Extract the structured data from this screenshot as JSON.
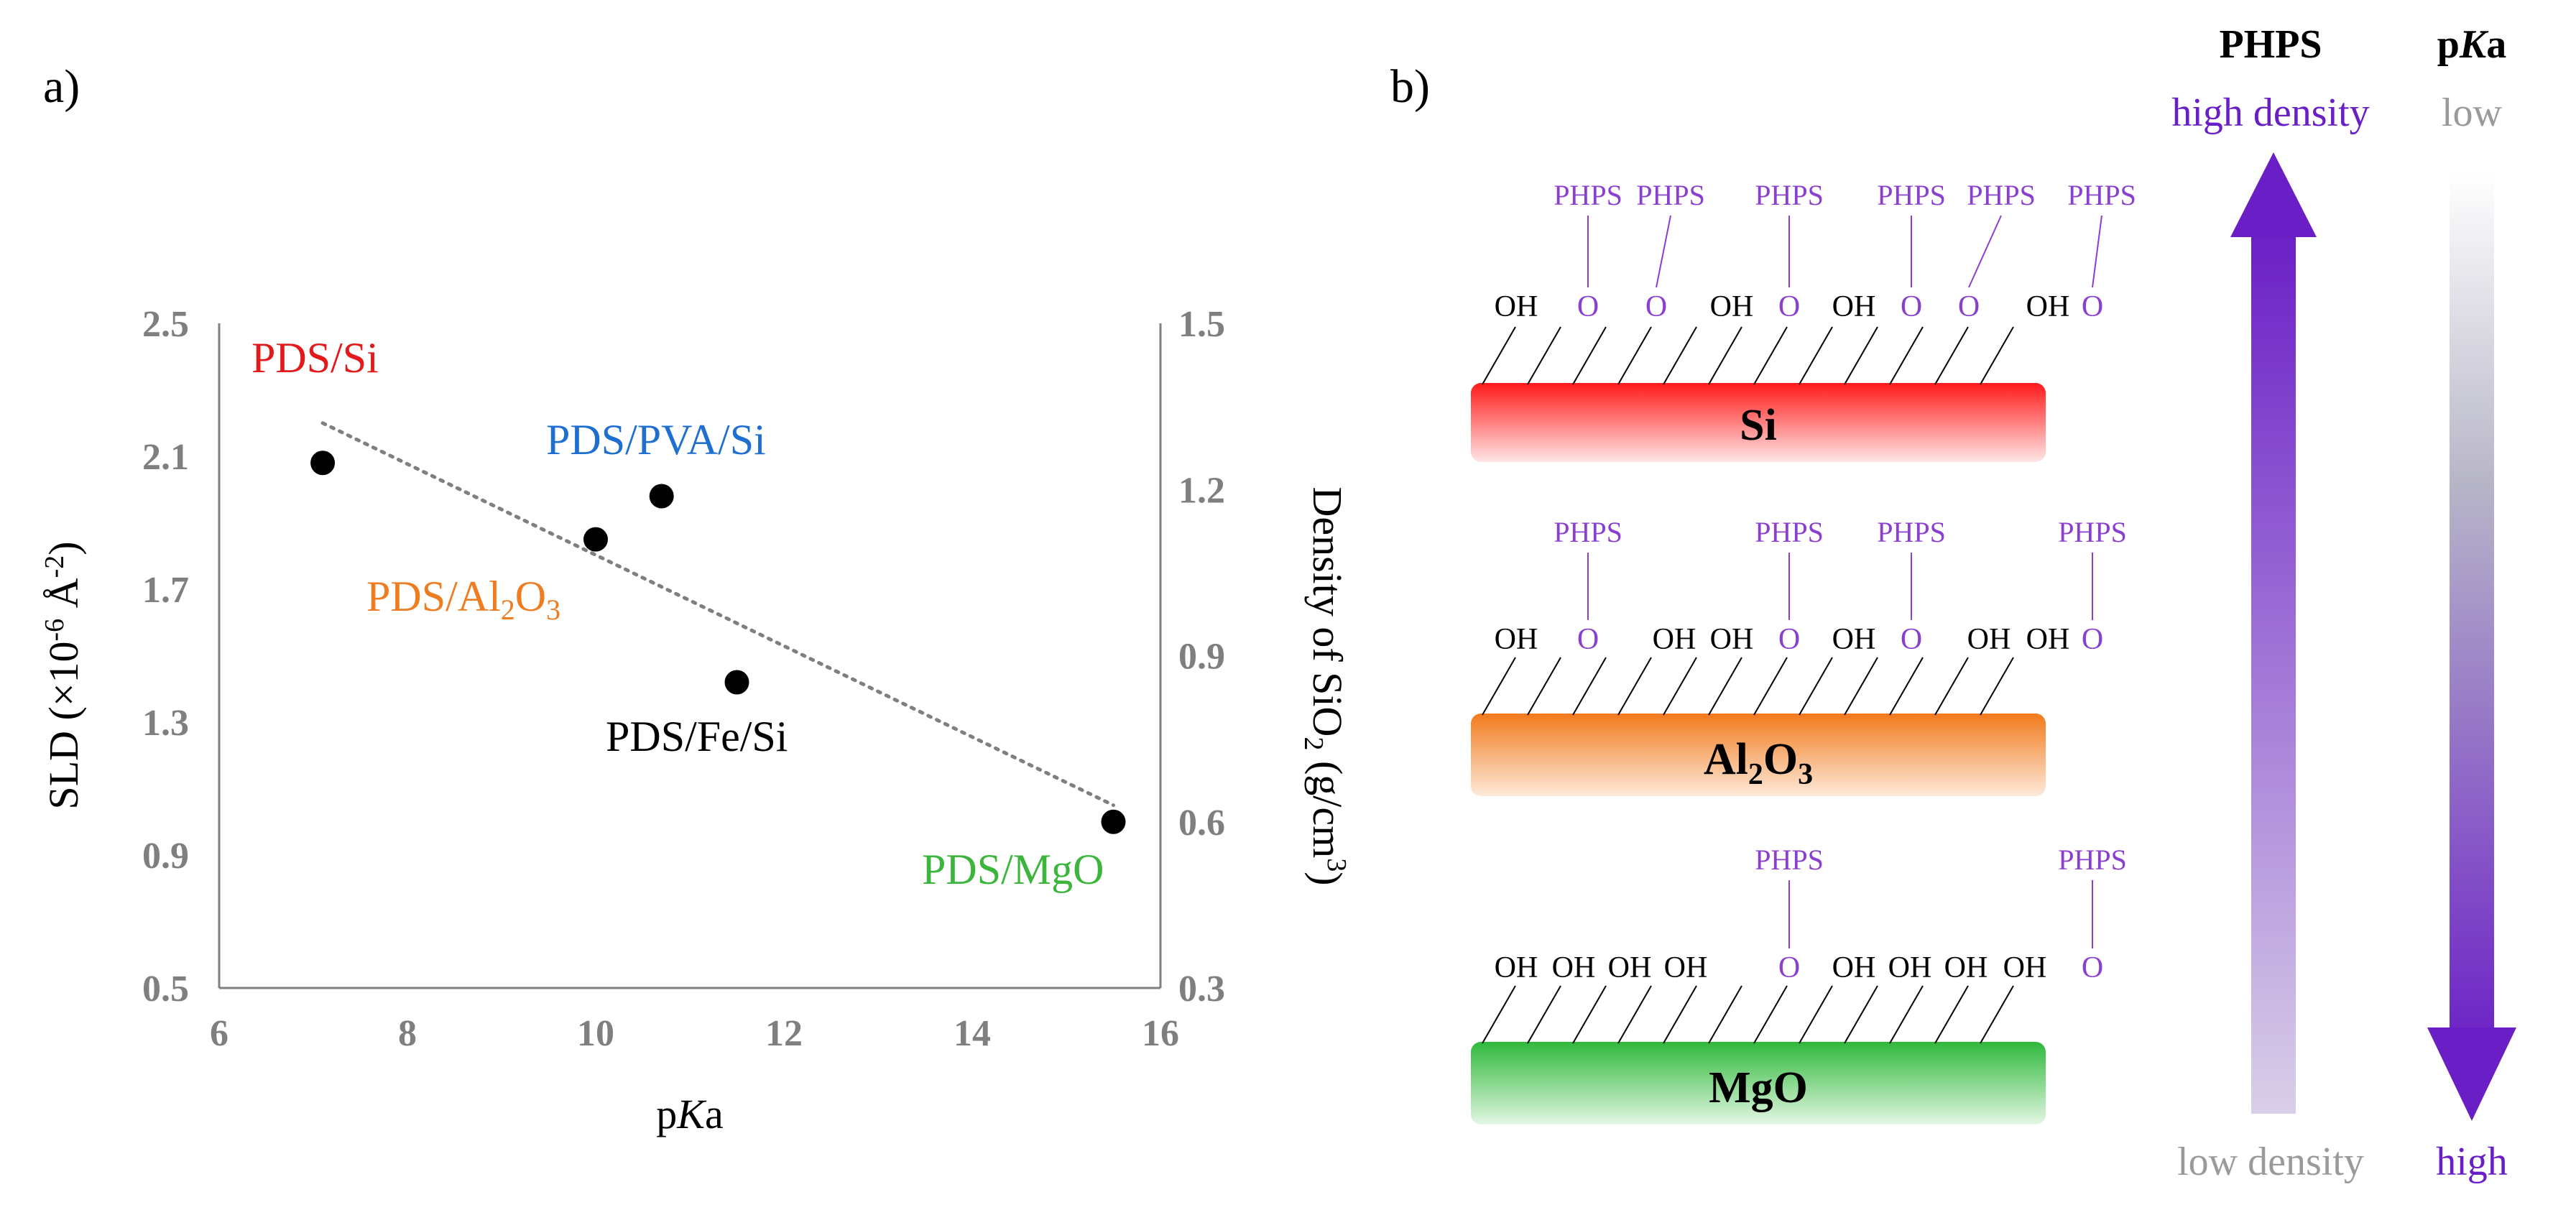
{
  "panels": {
    "a": "a)",
    "b": "b)"
  },
  "chart_data": {
    "type": "scatter",
    "title": "",
    "xlabel_prefix": "p",
    "xlabel_italic": "K",
    "xlabel_suffix": "a",
    "ylabel_left": "SLD (×10",
    "ylabel_left_sup": "-6",
    "ylabel_left_unit": " Å",
    "ylabel_left_unit_sup": "-2",
    "ylabel_left_close": ")",
    "ylabel_right": "Density of SiO",
    "ylabel_right_sub": "2",
    "ylabel_right_unit": " (g/cm",
    "ylabel_right_unit_sup": "3",
    "ylabel_right_close": ")",
    "xlim": [
      6,
      16
    ],
    "ylim": [
      0.5,
      2.5
    ],
    "ylim_right": [
      0.3,
      1.5
    ],
    "xticks": [
      "6",
      "8",
      "10",
      "12",
      "14",
      "16"
    ],
    "yticks": [
      "0.5",
      "0.9",
      "1.3",
      "1.7",
      "2.1",
      "2.5"
    ],
    "yticks_right": [
      "0.3",
      "0.6",
      "0.9",
      "1.2",
      "1.5"
    ],
    "points": [
      {
        "label": "PDS/Si",
        "x": 7.1,
        "y": 2.08,
        "color": "#e31a1c"
      },
      {
        "label": "PDS/PVA/Si",
        "x": 10.7,
        "y": 1.98,
        "color": "#1f6fd1"
      },
      {
        "label": "PDS/Al2O3",
        "x": 10.0,
        "y": 1.85,
        "color": "#ee7d22"
      },
      {
        "label": "PDS/Fe/Si",
        "x": 11.5,
        "y": 1.42,
        "color": "#000000"
      },
      {
        "label": "PDS/MgO",
        "x": 15.5,
        "y": 1.0,
        "color": "#3cb53c"
      }
    ],
    "trendline": {
      "x": [
        7.1,
        15.5
      ],
      "y": [
        2.2,
        1.05
      ],
      "style": "dotted",
      "color": "#7f7f7f"
    }
  },
  "labels_text": {
    "si": "PDS/Si",
    "pva": "PDS/PVA/Si",
    "al_prefix": "PDS/Al",
    "al_sub1": "2",
    "al_mid": "O",
    "al_sub2": "3",
    "fe": "PDS/Fe/Si",
    "mgo": "PDS/MgO"
  },
  "diagram": {
    "phps": "PHPS",
    "oh": "OH",
    "o": "O",
    "substrates": {
      "si": {
        "label": "Si",
        "color": "#ff2a2a"
      },
      "al": {
        "prefix": "Al",
        "sub1": "2",
        "mid": "O",
        "sub2": "3",
        "color": "#f58a2a"
      },
      "mgo": {
        "label": "MgO",
        "color": "#3fbf4a"
      }
    },
    "legend": {
      "phps_header": "PHPS",
      "pka_p": "p",
      "pka_k": "K",
      "pka_a": "a",
      "high_density": "high density",
      "low_density": "low density",
      "low": "low",
      "high": "high",
      "accent": "#6a1fc6"
    }
  }
}
